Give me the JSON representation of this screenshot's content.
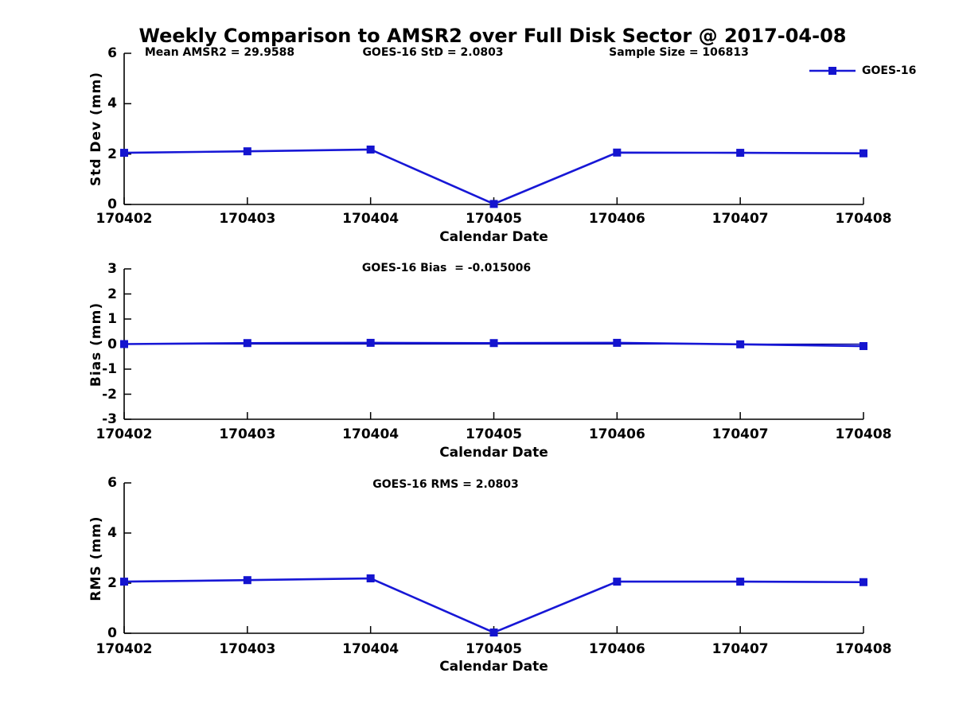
{
  "title": "Weekly Comparison to AMSR2 over Full Disk Sector @ 2017-04-08",
  "legend": {
    "label": "GOES-16"
  },
  "colors": {
    "line": "#1717d6",
    "marker": "#1414cf",
    "reference_line": "#00008b",
    "axis": "#000000",
    "text": "#000000",
    "background": "#ffffff"
  },
  "chart_data": [
    {
      "type": "line",
      "id": "std-dev",
      "annotations": [
        "Mean AMSR2 = 29.9588",
        "GOES-16 StD = 2.0803",
        "Sample Size = 106813"
      ],
      "categories": [
        "170402",
        "170403",
        "170404",
        "170405",
        "170406",
        "170407",
        "170408"
      ],
      "series": [
        {
          "name": "GOES-16",
          "values": [
            2.05,
            2.11,
            2.18,
            0.02,
            2.06,
            2.05,
            2.03
          ]
        }
      ],
      "xlabel": "Calendar Date",
      "ylabel": "Std Dev (mm)",
      "ylim": [
        0,
        6
      ],
      "yticks": [
        0,
        2,
        4,
        6
      ],
      "grid": false,
      "legend_entry": "GOES-16",
      "legend_position": "top-right"
    },
    {
      "type": "line",
      "id": "bias",
      "annotations": [
        "GOES-16 Bias  = -0.015006"
      ],
      "categories": [
        "170402",
        "170403",
        "170404",
        "170405",
        "170406",
        "170407",
        "170408"
      ],
      "series": [
        {
          "name": "GOES-16",
          "values": [
            0.0,
            0.04,
            0.05,
            0.04,
            0.05,
            -0.01,
            -0.08
          ]
        }
      ],
      "xlabel": "Calendar Date",
      "ylabel": "Bias (mm)",
      "ylim": [
        -3,
        3
      ],
      "yticks": [
        -3,
        -2,
        -1,
        0,
        1,
        2,
        3
      ],
      "grid": false,
      "reference_line_y": 0
    },
    {
      "type": "line",
      "id": "rms",
      "annotations": [
        "GOES-16 RMS = 2.0803"
      ],
      "categories": [
        "170402",
        "170403",
        "170404",
        "170405",
        "170406",
        "170407",
        "170408"
      ],
      "series": [
        {
          "name": "GOES-16",
          "values": [
            2.06,
            2.12,
            2.19,
            0.03,
            2.06,
            2.06,
            2.04
          ]
        }
      ],
      "xlabel": "Calendar Date",
      "ylabel": "RMS (mm)",
      "ylim": [
        0,
        6
      ],
      "yticks": [
        0,
        2,
        4,
        6
      ],
      "grid": false
    }
  ]
}
